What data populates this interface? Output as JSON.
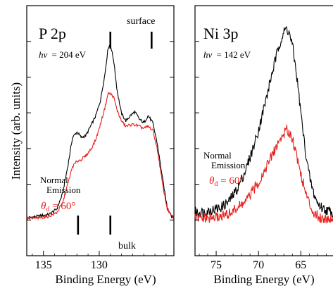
{
  "chart_data": [
    {
      "type": "line",
      "panel_label": "P 2p",
      "photon_label_symbol": "hν",
      "photon_label_value": "= 204 eV",
      "xlabel": "Binding Energy (eV)",
      "ylabel": "Intensity (arb. units)",
      "xlim": [
        136.5,
        123.3
      ],
      "x_reversed": true,
      "x_ticks": [
        135,
        130
      ],
      "x_tick_labels": [
        "135",
        "130"
      ],
      "y_ticks_minor_count": 6,
      "ylim": [
        0,
        1.0
      ],
      "annotations": {
        "surface_label": "surface",
        "surface_marks": [
          129.0,
          125.3
        ],
        "bulk_label": "bulk",
        "bulk_marks": [
          131.9,
          129.0
        ],
        "normal_emission_line1": "Normal",
        "normal_emission_line2": "Emission",
        "theta_symbol": "θ",
        "theta_subscript": "d",
        "theta_value": " = 60°"
      },
      "series": [
        {
          "color": "#000000",
          "x": [
            136.5,
            135.5,
            134.5,
            133.8,
            133.3,
            132.8,
            132.4,
            132.0,
            131.6,
            131.2,
            130.7,
            130.3,
            129.9,
            129.5,
            129.2,
            129.0,
            128.7,
            128.4,
            128.0,
            127.6,
            127.2,
            126.8,
            126.4,
            126.0,
            125.6,
            125.2,
            124.8,
            124.3,
            123.9,
            123.5,
            123.3
          ],
          "y": [
            0.04,
            0.05,
            0.06,
            0.09,
            0.17,
            0.33,
            0.48,
            0.51,
            0.48,
            0.49,
            0.55,
            0.6,
            0.68,
            0.82,
            0.97,
            0.99,
            0.9,
            0.74,
            0.61,
            0.57,
            0.6,
            0.62,
            0.58,
            0.56,
            0.6,
            0.56,
            0.45,
            0.25,
            0.1,
            0.05,
            0.04
          ]
        },
        {
          "color": "#e8201c",
          "x": [
            136.5,
            135.5,
            134.5,
            133.8,
            133.3,
            132.8,
            132.4,
            132.0,
            131.6,
            131.2,
            130.7,
            130.3,
            129.9,
            129.5,
            129.2,
            129.0,
            128.7,
            128.4,
            128.0,
            127.6,
            127.2,
            126.8,
            126.4,
            126.0,
            125.6,
            125.2,
            124.8,
            124.3,
            123.9,
            123.5,
            123.3
          ],
          "y": [
            0.04,
            0.04,
            0.05,
            0.07,
            0.12,
            0.23,
            0.32,
            0.35,
            0.36,
            0.38,
            0.42,
            0.47,
            0.55,
            0.64,
            0.72,
            0.72,
            0.7,
            0.63,
            0.57,
            0.54,
            0.55,
            0.55,
            0.54,
            0.53,
            0.54,
            0.52,
            0.42,
            0.22,
            0.09,
            0.05,
            0.04
          ]
        }
      ]
    },
    {
      "type": "line",
      "panel_label": "Ni 3p",
      "photon_label_symbol": "hν",
      "photon_label_value": "= 142 eV",
      "xlabel": "Binding Energy (eV)",
      "xlim": [
        77.5,
        61.2
      ],
      "x_reversed": true,
      "x_ticks": [
        75,
        70,
        65
      ],
      "x_tick_labels": [
        "75",
        "70",
        "65"
      ],
      "ylim": [
        0,
        1.0
      ],
      "annotations": {
        "normal_emission_line1": "Normal",
        "normal_emission_line2": "Emission",
        "theta_symbol": "θ",
        "theta_subscript": "d",
        "theta_value": " = 60°"
      },
      "series": [
        {
          "color": "#000000",
          "x": [
            77.5,
            76.5,
            75.5,
            74.5,
            73.5,
            72.5,
            71.5,
            71.0,
            70.5,
            70.0,
            69.5,
            69.0,
            68.5,
            68.0,
            67.5,
            67.0,
            66.7,
            66.4,
            66.0,
            65.5,
            65.0,
            64.5,
            64.0,
            63.5,
            63.0,
            62.5,
            62.0,
            61.5,
            61.2
          ],
          "y": [
            0.13,
            0.13,
            0.14,
            0.15,
            0.18,
            0.24,
            0.33,
            0.39,
            0.45,
            0.52,
            0.6,
            0.68,
            0.77,
            0.85,
            0.93,
            0.98,
            1.0,
            0.98,
            0.92,
            0.78,
            0.6,
            0.43,
            0.3,
            0.22,
            0.17,
            0.15,
            0.14,
            0.13,
            0.13
          ]
        },
        {
          "color": "#e8201c",
          "x": [
            77.5,
            76.5,
            75.5,
            74.5,
            73.5,
            72.5,
            71.5,
            71.0,
            70.5,
            70.0,
            69.5,
            69.0,
            68.5,
            68.0,
            67.5,
            67.0,
            66.7,
            66.4,
            66.0,
            65.5,
            65.0,
            64.5,
            64.0,
            63.5,
            63.0,
            62.5,
            62.0,
            61.5,
            61.2
          ],
          "y": [
            0.1,
            0.1,
            0.1,
            0.11,
            0.12,
            0.15,
            0.18,
            0.21,
            0.24,
            0.27,
            0.31,
            0.35,
            0.39,
            0.43,
            0.47,
            0.5,
            0.52,
            0.51,
            0.48,
            0.4,
            0.31,
            0.23,
            0.17,
            0.13,
            0.11,
            0.1,
            0.1,
            0.1,
            0.1
          ]
        }
      ]
    }
  ]
}
